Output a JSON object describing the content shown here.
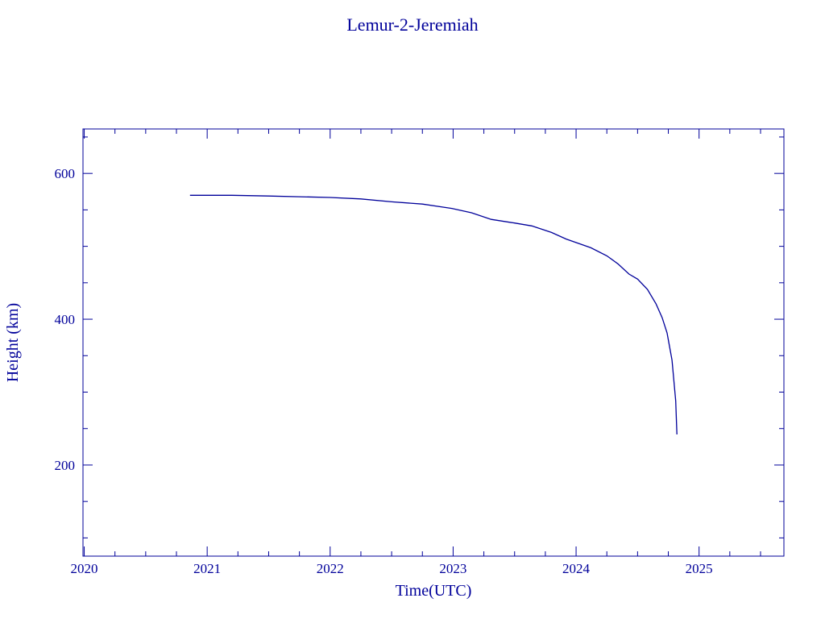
{
  "chart_data": {
    "type": "line",
    "title": "Lemur-2-Jeremiah",
    "xlabel": "Time(UTC)",
    "ylabel": "Height (km)",
    "xlim": [
      2019.99,
      2025.69
    ],
    "ylim": [
      75,
      661
    ],
    "x_ticks": [
      2020,
      2021,
      2022,
      2023,
      2024,
      2025
    ],
    "x_tick_labels": [
      "2020",
      "2021",
      "2022",
      "2023",
      "2024",
      "2025"
    ],
    "x_minor_step": 0.25,
    "y_ticks": [
      200,
      400,
      600
    ],
    "y_tick_labels": [
      "200",
      "400",
      "600"
    ],
    "y_minor_step": 50,
    "grid": false,
    "color": "#00009a",
    "series": [
      {
        "x": [
          2020.86,
          2021.2,
          2021.5,
          2021.75,
          2022.0,
          2022.25,
          2022.5,
          2022.75,
          2022.99,
          2023.15,
          2023.31,
          2023.5,
          2023.64,
          2023.8,
          2023.92,
          2024.12,
          2024.25,
          2024.34,
          2024.43,
          2024.5,
          2024.58,
          2024.65,
          2024.7,
          2024.74,
          2024.78,
          2024.81,
          2024.82
        ],
        "y": [
          570,
          570,
          569,
          568,
          567,
          565,
          561,
          558,
          552,
          546,
          537,
          532,
          528,
          519,
          510,
          498,
          487,
          476,
          462,
          455,
          441,
          421,
          402,
          381,
          344,
          288,
          242
        ]
      }
    ]
  }
}
